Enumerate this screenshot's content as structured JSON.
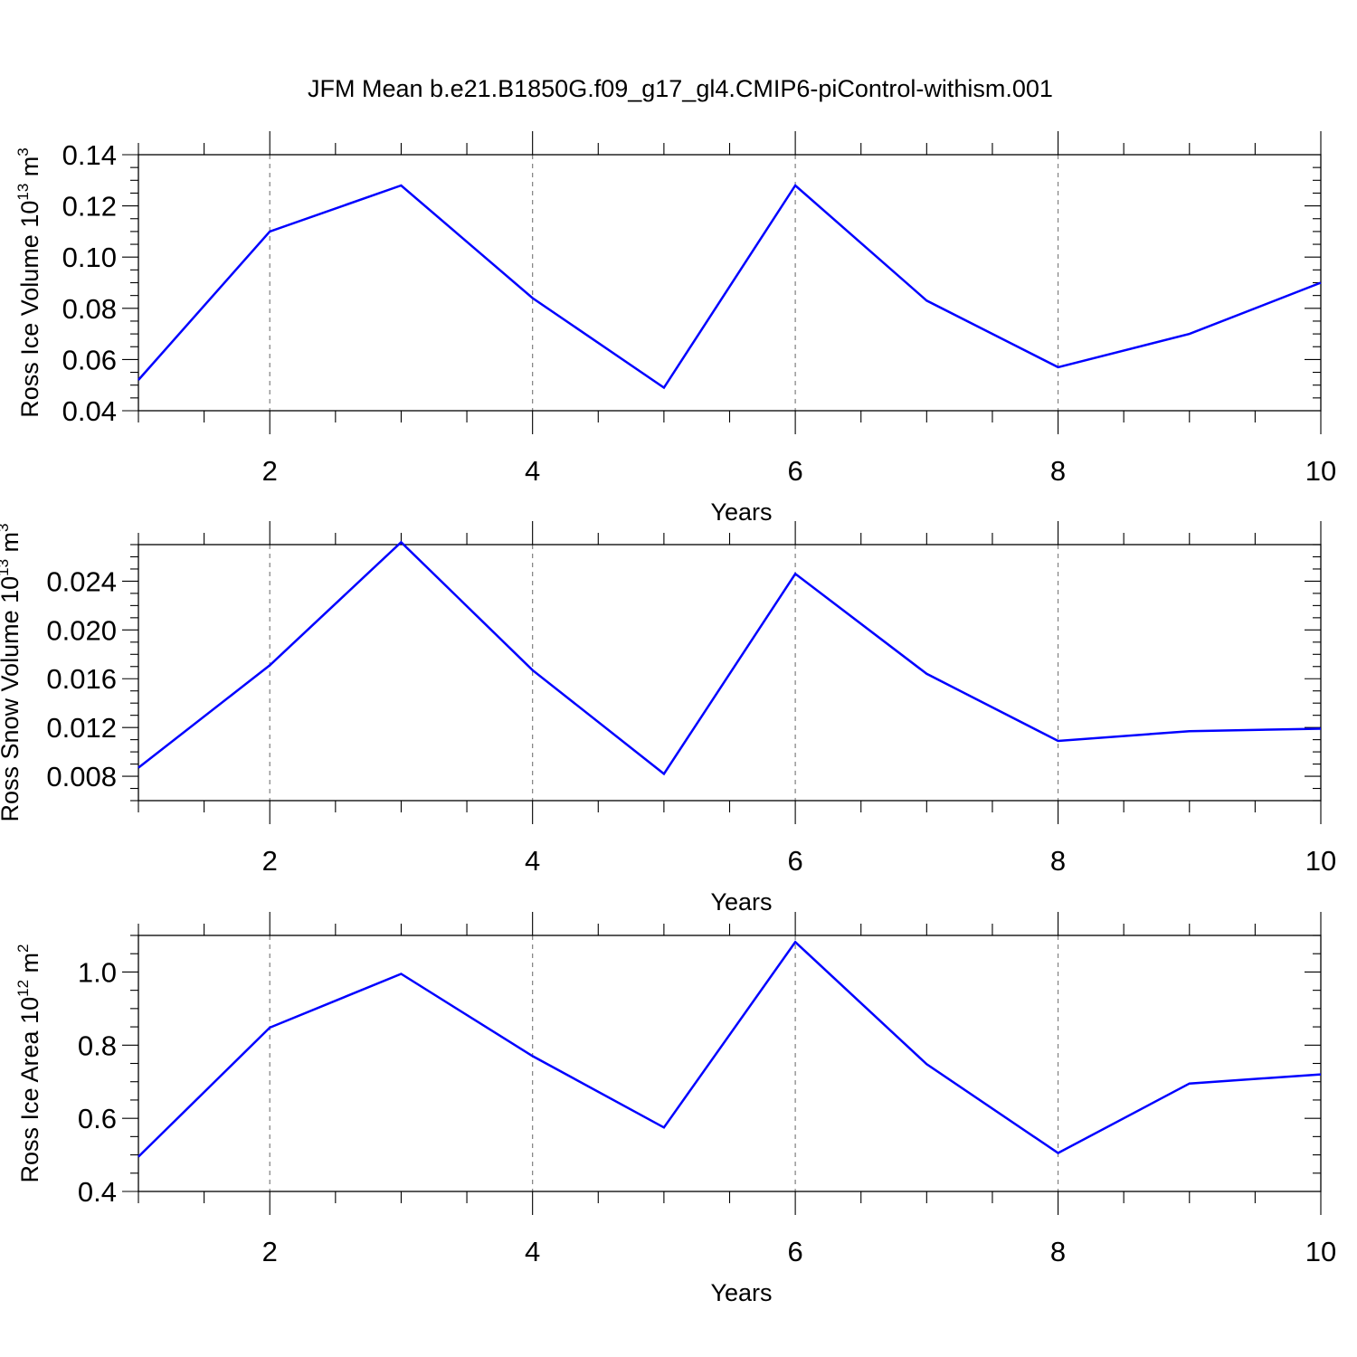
{
  "title": "JFM Mean b.e21.B1850G.f09_g17_gl4.CMIP6-piControl-withism.001",
  "chart_data": [
    {
      "type": "line",
      "x": [
        1,
        2,
        3,
        4,
        5,
        6,
        7,
        8,
        9,
        10
      ],
      "series": [
        {
          "color": "#0000ff",
          "values": [
            0.052,
            0.11,
            0.128,
            0.084,
            0.049,
            0.128,
            0.083,
            0.057,
            0.07,
            0.09
          ]
        }
      ],
      "xlabel": "Years",
      "ylabel": {
        "text": "Ross Ice Volume 10",
        "exp": "13",
        "unit": " m",
        "unit_exp": "3"
      },
      "xlim": [
        1,
        10
      ],
      "ylim": [
        0.04,
        0.14
      ],
      "xticks": [
        2,
        4,
        6,
        8,
        10
      ],
      "xtick_labels": [
        "2",
        "4",
        "6",
        "8",
        "10"
      ],
      "yticks": [
        0.04,
        0.06,
        0.08,
        0.1,
        0.12,
        0.14
      ],
      "ytick_labels": [
        "0.04",
        "0.06",
        "0.08",
        "0.10",
        "0.12",
        "0.14"
      ],
      "yminor_step": 0.005,
      "grid": "dashed vertical at major x ticks"
    },
    {
      "type": "line",
      "x": [
        1,
        2,
        3,
        4,
        5,
        6,
        7,
        8,
        9,
        10
      ],
      "series": [
        {
          "color": "#0000ff",
          "values": [
            0.0087,
            0.0171,
            0.0272,
            0.0167,
            0.0082,
            0.0246,
            0.0164,
            0.0109,
            0.0117,
            0.0119
          ]
        }
      ],
      "xlabel": "Years",
      "ylabel": {
        "text": "Ross Snow Volume 10",
        "exp": "13",
        "unit": " m",
        "unit_exp": "3"
      },
      "xlim": [
        1,
        10
      ],
      "ylim": [
        0.006,
        0.027
      ],
      "xticks": [
        2,
        4,
        6,
        8,
        10
      ],
      "xtick_labels": [
        "2",
        "4",
        "6",
        "8",
        "10"
      ],
      "yticks": [
        0.008,
        0.012,
        0.016,
        0.02,
        0.024
      ],
      "ytick_labels": [
        "0.008",
        "0.012",
        "0.016",
        "0.020",
        "0.024"
      ],
      "yminor_step": 0.001,
      "grid": "dashed vertical at major x ticks"
    },
    {
      "type": "line",
      "x": [
        1,
        2,
        3,
        4,
        5,
        6,
        7,
        8,
        9,
        10
      ],
      "series": [
        {
          "color": "#0000ff",
          "values": [
            0.495,
            0.848,
            0.995,
            0.77,
            0.575,
            1.082,
            0.748,
            0.505,
            0.695,
            0.72
          ]
        }
      ],
      "xlabel": "Years",
      "ylabel": {
        "text": "Ross Ice Area 10",
        "exp": "12",
        "unit": " m",
        "unit_exp": "2"
      },
      "xlim": [
        1,
        10
      ],
      "ylim": [
        0.4,
        1.1
      ],
      "xticks": [
        2,
        4,
        6,
        8,
        10
      ],
      "xtick_labels": [
        "2",
        "4",
        "6",
        "8",
        "10"
      ],
      "yticks": [
        0.4,
        0.6,
        0.8,
        1.0
      ],
      "ytick_labels": [
        "0.4",
        "0.6",
        "0.8",
        "1.0"
      ],
      "yminor_step": 0.05,
      "grid": "dashed vertical at major x ticks"
    }
  ]
}
